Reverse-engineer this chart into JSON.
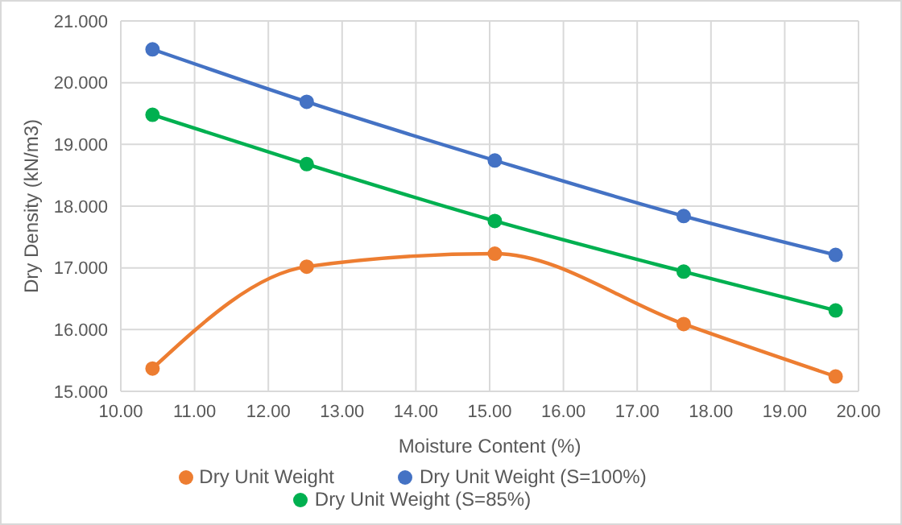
{
  "chart_data": {
    "type": "line",
    "xlabel": "Moisture Content (%)",
    "ylabel": "Dry Density (kN/m3)",
    "xlim": [
      10,
      20
    ],
    "xticks": [
      {
        "value": 10,
        "label": "10.00"
      },
      {
        "value": 11,
        "label": "11.00"
      },
      {
        "value": 12,
        "label": "12.00"
      },
      {
        "value": 13,
        "label": "13.00"
      },
      {
        "value": 14,
        "label": "14.00"
      },
      {
        "value": 15,
        "label": "15.00"
      },
      {
        "value": 16,
        "label": "16.00"
      },
      {
        "value": 17,
        "label": "17.00"
      },
      {
        "value": 18,
        "label": "18.00"
      },
      {
        "value": 19,
        "label": "19.00"
      },
      {
        "value": 20,
        "label": "20.00"
      }
    ],
    "ylim": [
      15,
      21
    ],
    "yticks": [
      {
        "value": 15,
        "label": "15.000"
      },
      {
        "value": 16,
        "label": "16.000"
      },
      {
        "value": 17,
        "label": "17.000"
      },
      {
        "value": 18,
        "label": "18.000"
      },
      {
        "value": 19,
        "label": "19.000"
      },
      {
        "value": 20,
        "label": "20.000"
      },
      {
        "value": 21,
        "label": "21.000"
      }
    ],
    "x": [
      10.43,
      12.52,
      15.07,
      17.63,
      19.69
    ],
    "series": [
      {
        "name": "Dry Unit Weight",
        "color": "#ed7d31",
        "values": [
          15.37,
          17.02,
          17.23,
          16.09,
          15.24
        ]
      },
      {
        "name": "Dry Unit Weight (S=85%)",
        "color": "#00b050",
        "values": [
          19.48,
          18.68,
          17.76,
          16.94,
          16.31
        ]
      },
      {
        "name": "Dry Unit Weight (S=100%)",
        "color": "#4472c4",
        "values": [
          20.54,
          19.69,
          18.74,
          17.84,
          17.21
        ]
      }
    ],
    "grid": true,
    "legend": "bottom",
    "marker": "circle",
    "line_style": "solid"
  }
}
